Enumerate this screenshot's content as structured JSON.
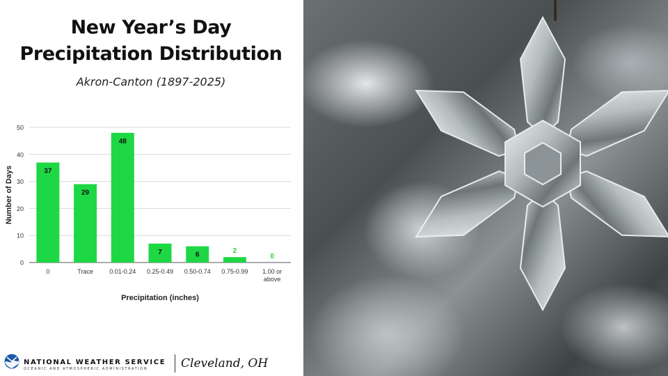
{
  "header": {
    "title_line1": "New Year’s Day",
    "title_line2": "Precipitation Distribution",
    "subtitle": "Akron-Canton (1897-2025)"
  },
  "chart_data": {
    "type": "bar",
    "categories": [
      "0",
      "Trace",
      "0.01-0.24",
      "0.25-0.49",
      "0.50-0.74",
      "0.75-0.99",
      "1.00 or above"
    ],
    "values": [
      37,
      29,
      48,
      7,
      6,
      2,
      0
    ],
    "xlabel": "Precipitation (inches)",
    "ylabel": "Number of Days",
    "ylim": [
      0,
      50
    ],
    "yticks": [
      0,
      10,
      20,
      30,
      40,
      50
    ],
    "grid": true,
    "bar_color": "#1ed744",
    "label_color_small": "#2ecc40"
  },
  "footer": {
    "agency_name": "NATIONAL WEATHER SERVICE",
    "agency_sub": "OCEANIC AND ATMOSPHERIC ADMINISTRATION",
    "office": "Cleveland, OH",
    "logo_color": "#1a5aa6"
  }
}
